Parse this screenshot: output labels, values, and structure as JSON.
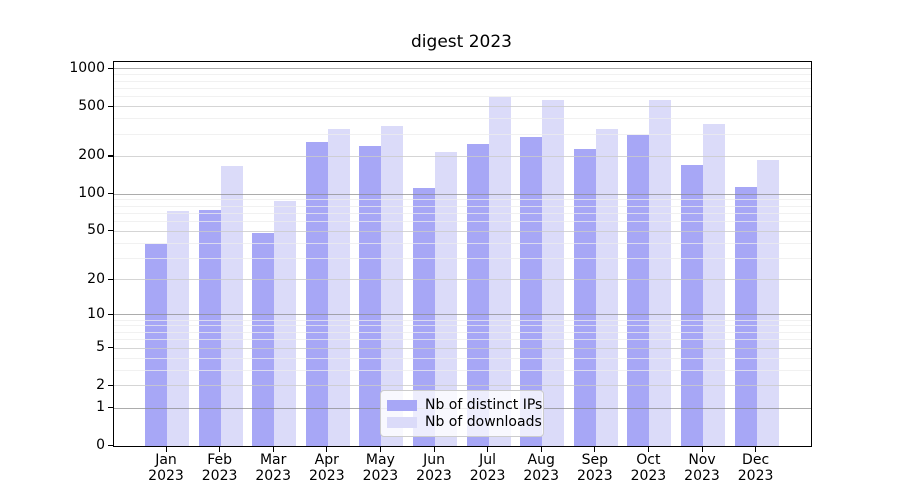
{
  "chart_data": {
    "type": "bar",
    "title": "digest 2023",
    "categories": [
      "Jan",
      "Feb",
      "Mar",
      "Apr",
      "May",
      "Jun",
      "Jul",
      "Aug",
      "Sep",
      "Oct",
      "Nov",
      "Dec"
    ],
    "x_tick_second_line": "2023",
    "series": [
      {
        "name": "Nb of distinct IPs",
        "color": "#a7a7f6",
        "values": [
          39,
          74,
          48,
          260,
          240,
          111,
          250,
          285,
          228,
          295,
          168,
          113
        ]
      },
      {
        "name": "Nb of downloads",
        "color": "#dbdbf9",
        "values": [
          72,
          165,
          87,
          330,
          347,
          215,
          590,
          560,
          328,
          555,
          358,
          185
        ]
      }
    ],
    "yscale": "log10(value+1)",
    "yticks": [
      0,
      1,
      2,
      5,
      10,
      20,
      50,
      100,
      200,
      500,
      1000
    ],
    "ylim": [
      0,
      1000
    ],
    "xlabel": "",
    "ylabel": "",
    "grid": true,
    "legend_position": "lower center",
    "grid_colors": {
      "power10_line": "rgba(137,137,137,0.70)",
      "labeled_line": "rgba(203,203,203,0.80)",
      "minor_line": "rgba(236,236,236,0.75)"
    }
  }
}
